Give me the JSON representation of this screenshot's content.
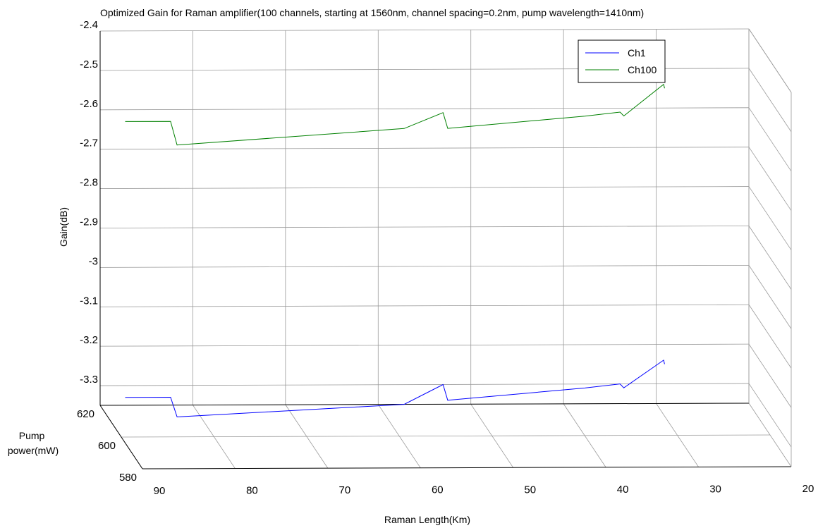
{
  "chart_data": {
    "type": "line",
    "projection": "3d",
    "title": "Optimized Gain for Raman amplifier(100 channels, starting at 1560nm, channel spacing=0.2nm, pump wavelength=1410nm)",
    "xlabel": "Raman Length(Km)",
    "ylabel": "Pump\npower(mW)",
    "zlabel": "Gain(dB)",
    "xlim": [
      20,
      90
    ],
    "ylim": [
      580,
      620
    ],
    "zlim": [
      -3.35,
      -2.4
    ],
    "x_ticks": [
      "90",
      "80",
      "70",
      "60",
      "50",
      "40",
      "30",
      "20"
    ],
    "y_ticks": [
      "620",
      "600",
      "580"
    ],
    "z_ticks": [
      "-2.4",
      "-2.5",
      "-2.6",
      "-2.7",
      "-2.8",
      "-2.9",
      "-3",
      "-3.1",
      "-3.2",
      "-3.3"
    ],
    "grid": true,
    "legend_position": "top-right",
    "series": [
      {
        "name": "Ch1",
        "color": "#0000ff",
        "points": [
          {
            "x": 87.3,
            "y": 620,
            "z": -3.33
          },
          {
            "x": 82.4,
            "y": 620,
            "z": -3.33
          },
          {
            "x": 81.7,
            "y": 620,
            "z": -3.38
          },
          {
            "x": 57.2,
            "y": 620,
            "z": -3.35
          },
          {
            "x": 53.0,
            "y": 620,
            "z": -3.3
          },
          {
            "x": 52.5,
            "y": 620,
            "z": -3.34
          },
          {
            "x": 37.7,
            "y": 620,
            "z": -3.31
          },
          {
            "x": 33.9,
            "y": 620,
            "z": -3.3
          },
          {
            "x": 33.5,
            "y": 620,
            "z": -3.31
          },
          {
            "x": 29.2,
            "y": 620,
            "z": -3.24
          },
          {
            "x": 29.1,
            "y": 620,
            "z": -3.25
          }
        ]
      },
      {
        "name": "Ch100",
        "color": "#008000",
        "points": [
          {
            "x": 87.3,
            "y": 620,
            "z": -2.63
          },
          {
            "x": 82.4,
            "y": 620,
            "z": -2.63
          },
          {
            "x": 81.7,
            "y": 620,
            "z": -2.69
          },
          {
            "x": 57.2,
            "y": 620,
            "z": -2.65
          },
          {
            "x": 53.0,
            "y": 620,
            "z": -2.61
          },
          {
            "x": 52.5,
            "y": 620,
            "z": -2.65
          },
          {
            "x": 37.7,
            "y": 620,
            "z": -2.62
          },
          {
            "x": 33.9,
            "y": 620,
            "z": -2.61
          },
          {
            "x": 33.5,
            "y": 620,
            "z": -2.62
          },
          {
            "x": 29.2,
            "y": 620,
            "z": -2.54
          },
          {
            "x": 29.1,
            "y": 620,
            "z": -2.55
          }
        ]
      }
    ]
  }
}
